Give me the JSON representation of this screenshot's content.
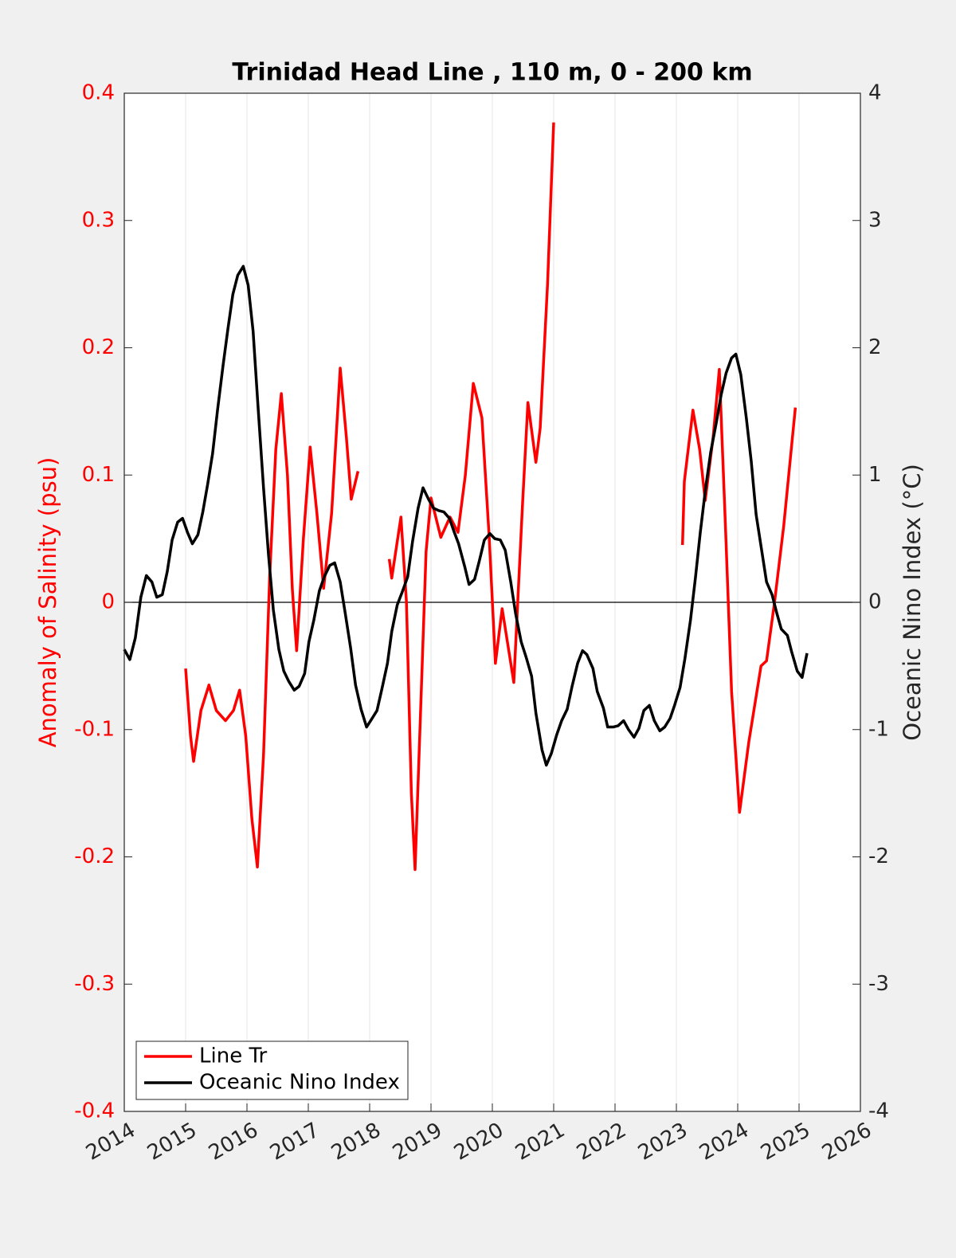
{
  "chart_data": {
    "type": "line",
    "title": "Trinidad Head Line , 110 m, 0 - 200 km",
    "ylabel": "Anomaly of Salinity (psu)",
    "y2label": "Oceanic Nino Index (°C)",
    "xlim": [
      2014,
      2026
    ],
    "xticks": [
      2014,
      2015,
      2016,
      2017,
      2018,
      2019,
      2020,
      2021,
      2022,
      2023,
      2024,
      2025,
      2026
    ],
    "ylim": [
      -0.4,
      0.4
    ],
    "yticks": [
      -0.4,
      -0.3,
      -0.2,
      -0.1,
      0,
      0.1,
      0.2,
      0.3,
      0.4
    ],
    "y2lim": [
      -4,
      4
    ],
    "y2ticks": [
      -4,
      -3,
      -2,
      -1,
      0,
      1,
      2,
      3,
      4
    ],
    "grid": "x",
    "legend": "lower left",
    "series": [
      {
        "name": "Line Tr",
        "color": "#ff0000",
        "x": [
          2015.0,
          2015.08,
          2015.13,
          2015.25,
          2015.38,
          2015.5,
          2015.65,
          2015.78,
          2015.88,
          2015.98,
          2016.08,
          2016.17,
          2016.27,
          2016.37,
          2016.47,
          2016.56,
          2016.66,
          2016.74,
          2016.81,
          2016.92,
          2017.03,
          2017.14,
          2017.25,
          2017.38,
          2017.52,
          2017.62,
          2017.7,
          2017.81,
          null,
          2018.32,
          2018.36,
          2018.51,
          2018.6,
          2018.68,
          2018.74,
          2018.82,
          2018.92,
          2019.0,
          2019.16,
          2019.31,
          2019.44,
          2019.56,
          2019.69,
          2019.83,
          2019.95,
          2020.05,
          2020.16,
          2020.35,
          2020.49,
          2020.58,
          2020.71,
          2020.78,
          2020.9,
          2021.0,
          null,
          2023.1,
          2023.13,
          2023.27,
          2023.38,
          2023.47,
          2023.6,
          2023.7,
          2023.8,
          2023.9,
          2024.03,
          2024.18,
          2024.38,
          2024.47,
          2024.6,
          2024.75,
          2024.94
        ],
        "values": [
          -0.052,
          -0.105,
          -0.125,
          -0.085,
          -0.065,
          -0.085,
          -0.093,
          -0.085,
          -0.069,
          -0.105,
          -0.17,
          -0.208,
          -0.12,
          0.02,
          0.12,
          0.164,
          0.1,
          0.01,
          -0.038,
          0.05,
          0.122,
          0.07,
          0.011,
          0.07,
          0.184,
          0.13,
          0.081,
          0.103,
          null,
          0.034,
          0.019,
          0.067,
          0.0,
          -0.15,
          -0.21,
          -0.1,
          0.04,
          0.082,
          0.051,
          0.067,
          0.055,
          0.1,
          0.172,
          0.145,
          0.05,
          -0.048,
          -0.005,
          -0.063,
          0.075,
          0.157,
          0.11,
          0.137,
          0.25,
          0.377,
          null,
          0.045,
          0.095,
          0.151,
          0.12,
          0.08,
          0.13,
          0.183,
          0.06,
          -0.07,
          -0.165,
          -0.11,
          -0.05,
          -0.046,
          0.0,
          0.06,
          0.153
        ]
      },
      {
        "name": "Oceanic Nino Index",
        "color": "#000000",
        "axis": "y2",
        "x": [
          2014.0,
          2014.09,
          2014.18,
          2014.27,
          2014.36,
          2014.45,
          2014.53,
          2014.62,
          2014.7,
          2014.78,
          2014.87,
          2014.95,
          2015.03,
          2015.11,
          2015.2,
          2015.28,
          2015.36,
          2015.44,
          2015.52,
          2015.61,
          2015.69,
          2015.77,
          2015.85,
          2015.94,
          2016.02,
          2016.1,
          2016.18,
          2016.27,
          2016.35,
          2016.43,
          2016.52,
          2016.6,
          2016.68,
          2016.77,
          2016.85,
          2016.94,
          2017.01,
          2017.09,
          2017.18,
          2017.26,
          2017.35,
          2017.43,
          2017.52,
          2017.6,
          2017.69,
          2017.77,
          2017.86,
          2017.95,
          2018.03,
          2018.12,
          2018.2,
          2018.29,
          2018.36,
          2018.45,
          2018.53,
          2018.62,
          2018.7,
          2018.79,
          2018.87,
          2018.96,
          2019.04,
          2019.13,
          2019.21,
          2019.3,
          2019.38,
          2019.45,
          2019.55,
          2019.62,
          2019.71,
          2019.79,
          2019.87,
          2019.96,
          2020.04,
          2020.13,
          2020.21,
          2020.3,
          2020.38,
          2020.47,
          2020.55,
          2020.64,
          2020.71,
          2020.81,
          2020.88,
          2020.96,
          2021.05,
          2021.13,
          2021.22,
          2021.3,
          2021.39,
          2021.47,
          2021.54,
          2021.64,
          2021.71,
          2021.81,
          2021.88,
          2021.97,
          2022.05,
          2022.14,
          2022.22,
          2022.31,
          2022.39,
          2022.47,
          2022.56,
          2022.64,
          2022.73,
          2022.81,
          2022.9,
          2022.97,
          2023.06,
          2023.14,
          2023.23,
          2023.31,
          2023.39,
          2023.48,
          2023.56,
          2023.65,
          2023.73,
          2023.81,
          2023.9,
          2023.97,
          2024.05,
          2024.14,
          2024.22,
          2024.3,
          2024.39,
          2024.47,
          2024.56,
          2024.64,
          2024.71,
          2024.81,
          2024.88,
          2024.97,
          2025.05,
          2025.13
        ],
        "values": [
          -0.37,
          -0.45,
          -0.28,
          0.04,
          0.21,
          0.16,
          0.04,
          0.06,
          0.24,
          0.49,
          0.63,
          0.66,
          0.55,
          0.46,
          0.53,
          0.71,
          0.93,
          1.17,
          1.51,
          1.86,
          2.15,
          2.42,
          2.57,
          2.64,
          2.49,
          2.13,
          1.54,
          0.9,
          0.38,
          -0.06,
          -0.37,
          -0.54,
          -0.62,
          -0.69,
          -0.66,
          -0.56,
          -0.31,
          -0.14,
          0.09,
          0.2,
          0.29,
          0.31,
          0.16,
          -0.08,
          -0.36,
          -0.65,
          -0.84,
          -0.98,
          -0.92,
          -0.85,
          -0.68,
          -0.48,
          -0.23,
          -0.02,
          0.08,
          0.2,
          0.48,
          0.74,
          0.9,
          0.81,
          0.74,
          0.72,
          0.71,
          0.66,
          0.55,
          0.46,
          0.28,
          0.14,
          0.18,
          0.33,
          0.49,
          0.54,
          0.5,
          0.49,
          0.41,
          0.16,
          -0.09,
          -0.31,
          -0.43,
          -0.58,
          -0.87,
          -1.16,
          -1.28,
          -1.19,
          -1.04,
          -0.93,
          -0.84,
          -0.66,
          -0.48,
          -0.38,
          -0.41,
          -0.52,
          -0.7,
          -0.83,
          -0.98,
          -0.98,
          -0.97,
          -0.93,
          -1.0,
          -1.06,
          -0.99,
          -0.85,
          -0.81,
          -0.93,
          -1.01,
          -0.98,
          -0.91,
          -0.81,
          -0.67,
          -0.44,
          -0.14,
          0.19,
          0.55,
          0.91,
          1.18,
          1.41,
          1.63,
          1.8,
          1.92,
          1.95,
          1.79,
          1.45,
          1.11,
          0.69,
          0.41,
          0.16,
          0.06,
          -0.09,
          -0.21,
          -0.26,
          -0.39,
          -0.54,
          -0.59,
          -0.4
        ]
      }
    ]
  }
}
